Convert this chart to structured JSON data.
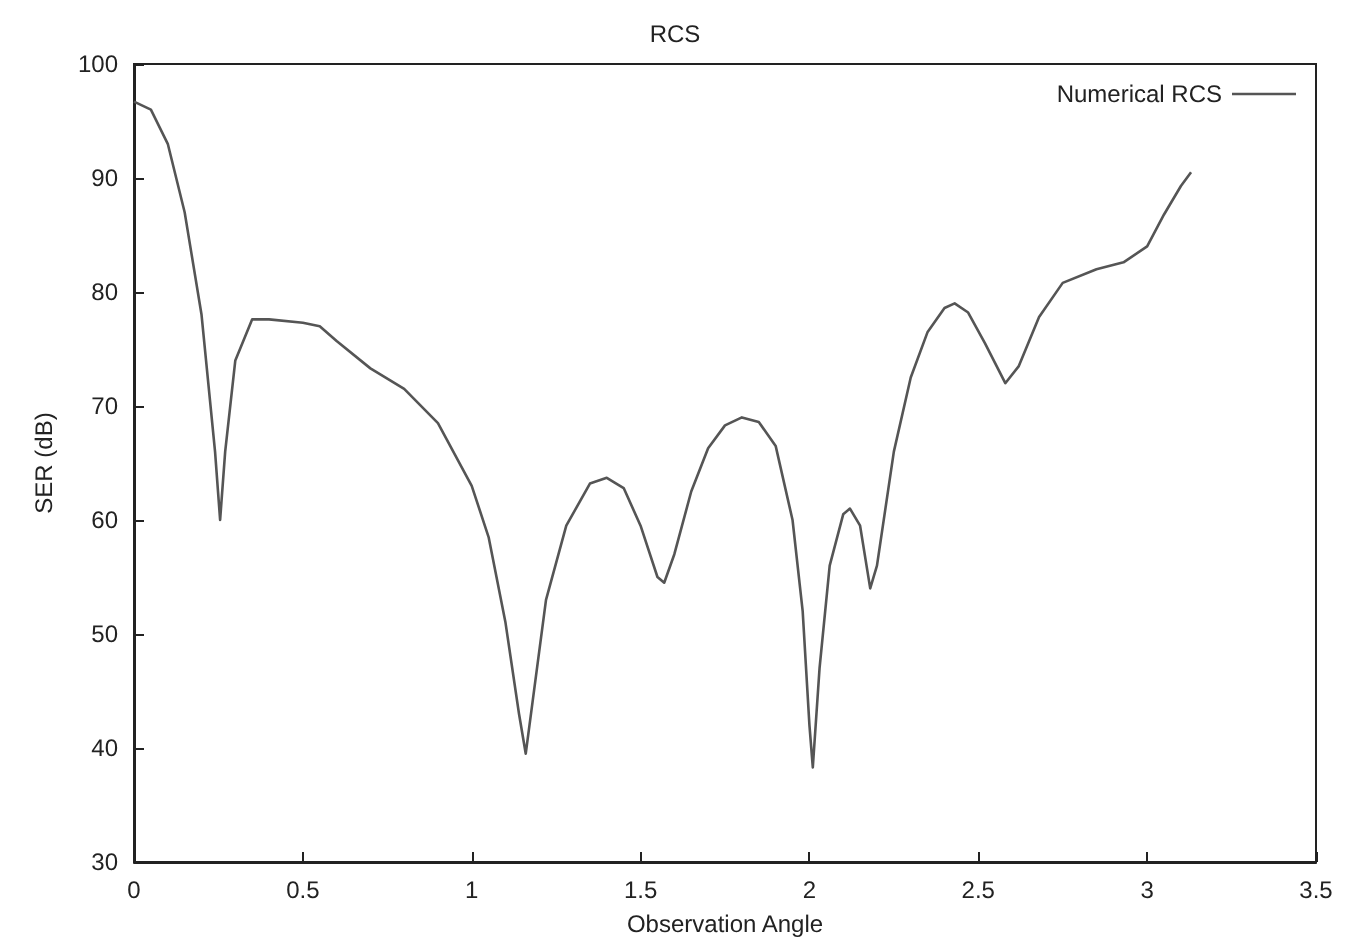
{
  "chart_data": {
    "type": "line",
    "title": "RCS",
    "xlabel": "Observation Angle",
    "ylabel": "SER (dB)",
    "xlim": [
      0,
      3.5
    ],
    "xticks": [
      0,
      0.5,
      1,
      1.5,
      2,
      2.5,
      3,
      3.5
    ],
    "ylim": [
      30,
      100
    ],
    "yticks": [
      30,
      40,
      50,
      60,
      70,
      80,
      90,
      100
    ],
    "grid": false,
    "legend": "top right",
    "marker": "none",
    "line_style": "solid",
    "series": [
      {
        "name": "Numerical RCS",
        "color": "#555555",
        "x": [
          0,
          0.05,
          0.1,
          0.15,
          0.2,
          0.24,
          0.255,
          0.27,
          0.3,
          0.35,
          0.4,
          0.5,
          0.55,
          0.6,
          0.7,
          0.8,
          0.9,
          1.0,
          1.05,
          1.1,
          1.14,
          1.16,
          1.18,
          1.22,
          1.28,
          1.35,
          1.4,
          1.45,
          1.5,
          1.55,
          1.57,
          1.6,
          1.65,
          1.7,
          1.75,
          1.8,
          1.85,
          1.9,
          1.95,
          1.98,
          2.0,
          2.01,
          2.03,
          2.06,
          2.1,
          2.12,
          2.15,
          2.18,
          2.2,
          2.25,
          2.3,
          2.35,
          2.4,
          2.43,
          2.47,
          2.52,
          2.58,
          2.62,
          2.68,
          2.75,
          2.85,
          2.93,
          3.0,
          3.05,
          3.1,
          3.13
        ],
        "values": [
          96.7,
          96,
          93,
          87,
          78,
          66,
          60,
          66,
          74,
          77.6,
          77.6,
          77.3,
          77,
          75.7,
          73.3,
          71.5,
          68.5,
          63,
          58.5,
          51,
          43,
          39.5,
          44,
          53,
          59.5,
          63.2,
          63.7,
          62.8,
          59.5,
          55,
          54.5,
          57,
          62.5,
          66.3,
          68.3,
          69,
          68.6,
          66.5,
          60,
          52,
          42,
          38.3,
          47,
          56,
          60.5,
          61,
          59.5,
          54,
          56,
          66,
          72.5,
          76.5,
          78.6,
          79,
          78.2,
          75.5,
          72,
          73.5,
          77.8,
          80.8,
          82,
          82.6,
          84,
          86.8,
          89.3,
          90.5
        ]
      }
    ]
  }
}
